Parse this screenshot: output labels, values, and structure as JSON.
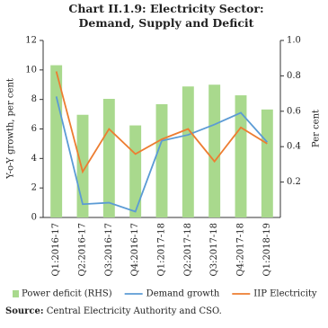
{
  "chart_data": {
    "type": "bar-line",
    "title": "Chart II.1.9: Electricity Sector: Demand, Supply and Deficit",
    "categories": [
      "Q1:2016-17",
      "Q2:2016-17",
      "Q3:2016-17",
      "Q4:2016-17",
      "Q1:2017-18",
      "Q2:2017-18",
      "Q3:2017-18",
      "Q4:2017-18",
      "Q1:2018-19"
    ],
    "ylabel": "Y-o-Y growth, per cent",
    "y2label": "Per cent",
    "ylim": [
      0,
      12
    ],
    "yticks": [
      0,
      2,
      4,
      6,
      8,
      10,
      12
    ],
    "y2lim": [
      0,
      1
    ],
    "y2ticks": [
      0.2,
      0.4,
      0.6,
      0.8,
      {
        "value": 1,
        "label": "1.0"
      }
    ],
    "series": [
      {
        "name": "Power deficit (RHS)",
        "kind": "bar",
        "axis": "y2",
        "color": "#a9d98d",
        "values": [
          0.86,
          0.58,
          0.67,
          0.52,
          0.64,
          0.74,
          0.75,
          0.69,
          0.61
        ]
      },
      {
        "name": "Demand growth",
        "kind": "line",
        "color": "#5b9bd5",
        "values": [
          8.2,
          0.9,
          1.0,
          0.4,
          5.2,
          5.6,
          6.3,
          7.1,
          5.1
        ]
      },
      {
        "name": "IIP Electricity",
        "kind": "line",
        "color": "#ed7d31",
        "values": [
          9.9,
          3.1,
          6.0,
          4.3,
          5.3,
          6.0,
          3.8,
          6.1,
          5.0
        ]
      }
    ],
    "source_label": "Source:",
    "source": "Central Electricity Authority and CSO."
  }
}
